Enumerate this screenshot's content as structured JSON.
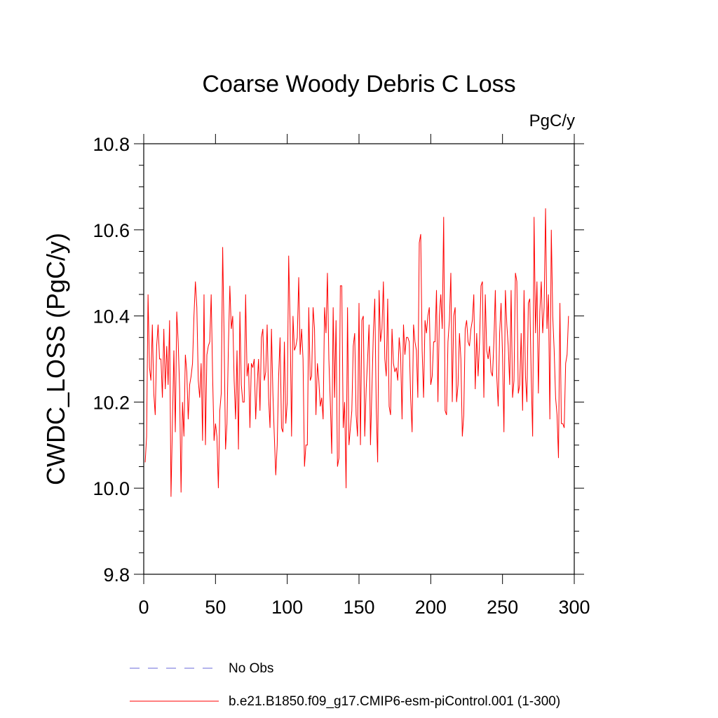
{
  "chart_data": {
    "type": "line",
    "title": "Coarse Woody Debris C Loss",
    "units": "PgC/y",
    "ylabel": "CWDC_LOSS  (PgC/y)",
    "xlabel": "",
    "xlim": [
      0,
      300
    ],
    "ylim": [
      9.8,
      10.8
    ],
    "xticks": [
      0,
      50,
      100,
      150,
      200,
      250,
      300
    ],
    "yticks": [
      9.8,
      10.0,
      10.2,
      10.4,
      10.6,
      10.8
    ],
    "xtick_labels": [
      "0",
      "50",
      "100",
      "150",
      "200",
      "250",
      "300"
    ],
    "ytick_labels": [
      "9.8",
      "10.0",
      "10.2",
      "10.4",
      "10.6",
      "10.8"
    ],
    "grid": false,
    "legend_position": "bottom",
    "legend": [
      {
        "label": "No Obs",
        "color": "#6a6ad8",
        "style": "dashed"
      },
      {
        "label": "b.e21.B1850.f09_g17.CMIP6-esm-piControl.001 (1-300)",
        "color": "#ff0000",
        "style": "solid"
      }
    ],
    "series": [
      {
        "name": "b.e21.B1850.f09_g17.CMIP6-esm-piControl.001 (1-300)",
        "color": "#ff0000",
        "x_start": 1,
        "x_step": 1,
        "values": [
          10.06,
          10.12,
          10.45,
          10.28,
          10.25,
          10.38,
          10.22,
          10.17,
          10.33,
          10.38,
          10.3,
          10.3,
          10.21,
          10.37,
          10.23,
          10.33,
          10.24,
          10.39,
          9.98,
          10.15,
          10.32,
          10.13,
          10.41,
          10.34,
          10.23,
          9.99,
          10.2,
          10.12,
          10.31,
          10.27,
          10.16,
          10.24,
          10.26,
          10.29,
          10.4,
          10.48,
          10.42,
          10.25,
          10.21,
          10.29,
          10.11,
          10.45,
          10.1,
          10.31,
          10.33,
          10.34,
          10.45,
          10.26,
          10.11,
          10.15,
          10.12,
          10.0,
          10.18,
          10.22,
          10.56,
          10.35,
          10.09,
          10.15,
          10.33,
          10.47,
          10.37,
          10.4,
          10.25,
          10.16,
          10.32,
          10.09,
          10.41,
          10.24,
          10.2,
          10.2,
          10.45,
          10.26,
          10.29,
          10.14,
          10.29,
          10.28,
          10.3,
          10.16,
          10.24,
          10.3,
          10.18,
          10.35,
          10.37,
          10.25,
          10.27,
          10.38,
          10.21,
          10.14,
          10.37,
          10.22,
          10.12,
          10.03,
          10.1,
          10.26,
          10.35,
          10.14,
          10.13,
          10.34,
          10.15,
          10.2,
          10.54,
          10.38,
          10.12,
          10.4,
          10.32,
          10.33,
          10.35,
          10.49,
          10.31,
          10.37,
          10.3,
          10.05,
          10.1,
          10.1,
          10.42,
          10.25,
          10.26,
          10.42,
          10.37,
          10.17,
          10.29,
          10.25,
          10.19,
          10.21,
          10.16,
          10.42,
          10.36,
          10.5,
          10.3,
          10.2,
          10.08,
          10.42,
          10.21,
          10.39,
          10.05,
          10.07,
          10.47,
          10.47,
          10.14,
          10.2,
          10.0,
          10.42,
          10.1,
          10.14,
          10.18,
          10.33,
          10.36,
          10.17,
          10.12,
          10.43,
          10.1,
          10.39,
          10.4,
          10.12,
          10.23,
          10.3,
          10.38,
          10.1,
          10.23,
          10.36,
          10.44,
          10.19,
          10.06,
          10.46,
          10.34,
          10.37,
          10.48,
          10.3,
          10.26,
          10.44,
          10.19,
          10.17,
          10.37,
          10.29,
          10.27,
          10.28,
          10.25,
          10.35,
          10.31,
          10.16,
          10.38,
          10.31,
          10.35,
          10.35,
          10.34,
          10.21,
          10.13,
          10.38,
          10.34,
          10.32,
          10.21,
          10.57,
          10.59,
          10.32,
          10.21,
          10.39,
          10.36,
          10.4,
          10.42,
          10.24,
          10.26,
          10.34,
          10.34,
          10.46,
          10.2,
          10.4,
          10.45,
          10.37,
          10.63,
          10.18,
          10.17,
          10.34,
          10.39,
          10.5,
          10.2,
          10.4,
          10.42,
          10.2,
          10.24,
          10.36,
          10.3,
          10.12,
          10.17,
          10.37,
          10.39,
          10.34,
          10.33,
          10.37,
          10.39,
          10.45,
          10.23,
          10.36,
          10.26,
          10.34,
          10.47,
          10.48,
          10.21,
          10.45,
          10.32,
          10.3,
          10.33,
          10.27,
          10.26,
          10.34,
          10.46,
          10.26,
          10.19,
          10.36,
          10.43,
          10.31,
          10.13,
          10.46,
          10.38,
          10.33,
          10.24,
          10.46,
          10.21,
          10.25,
          10.5,
          10.48,
          10.22,
          10.24,
          10.36,
          10.18,
          10.46,
          10.26,
          10.2,
          10.43,
          10.44,
          10.26,
          10.12,
          10.63,
          10.36,
          10.48,
          10.22,
          10.41,
          10.48,
          10.36,
          10.42,
          10.65,
          10.37,
          10.45,
          10.16,
          10.6,
          10.4,
          10.32,
          10.21,
          10.17,
          10.07,
          10.43,
          10.15,
          10.15,
          10.14,
          10.29,
          10.31,
          10.4
        ]
      }
    ]
  }
}
